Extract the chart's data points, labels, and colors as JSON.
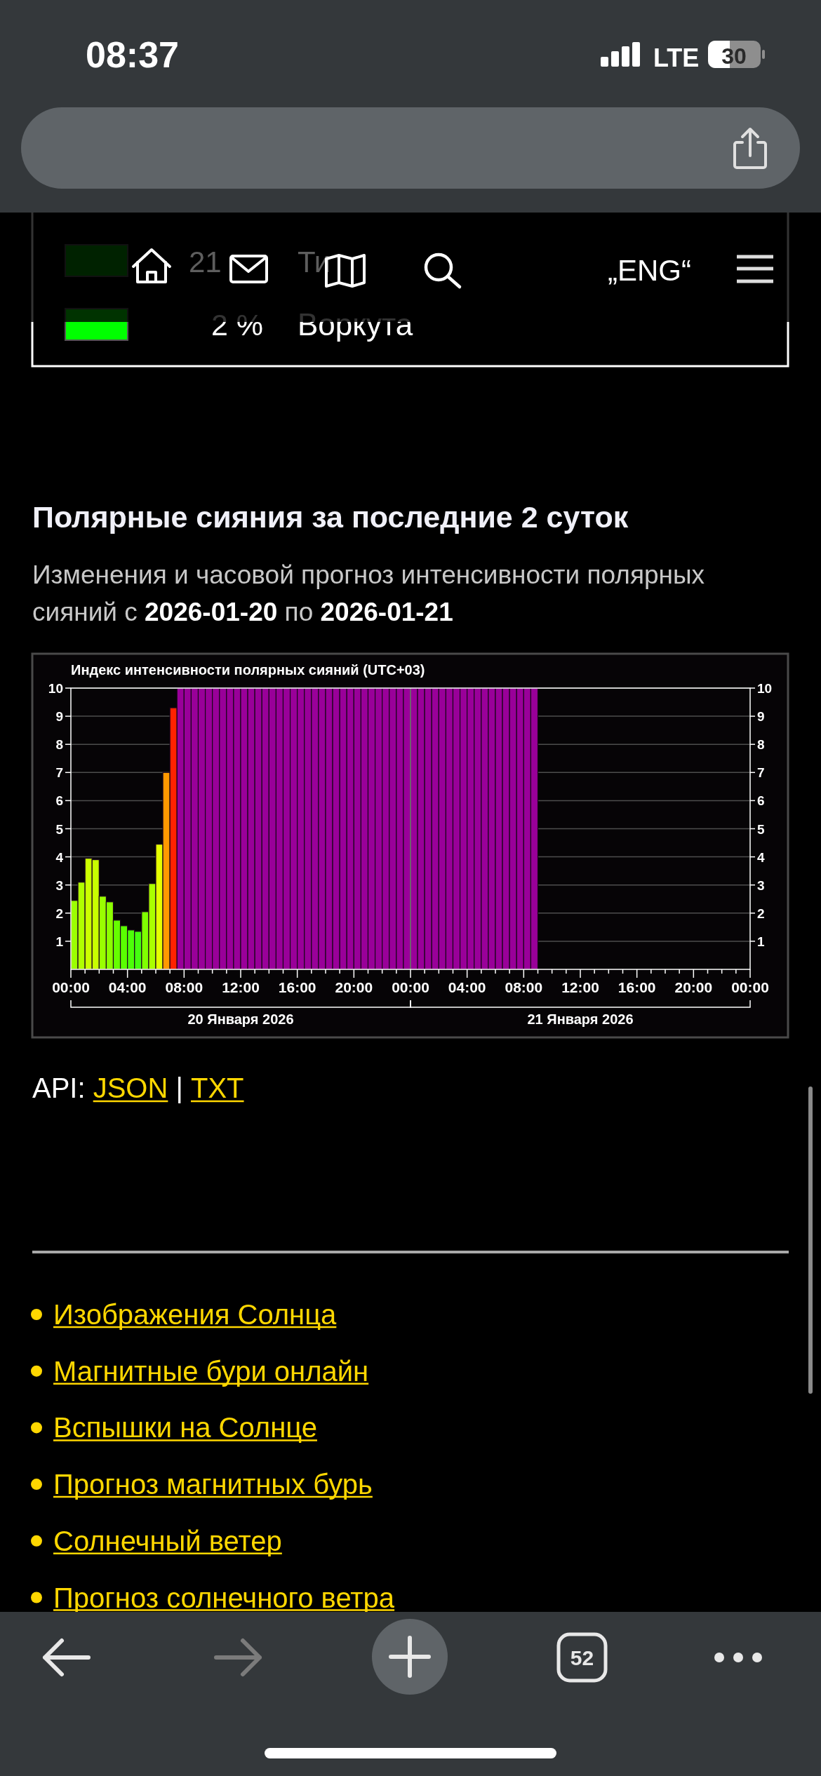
{
  "chart_data": {
    "type": "bar",
    "title": "Индекс интенсивности полярных сияний (UTC+03)",
    "x": [
      "2026-01-20T00:15",
      "2026-01-20T00:45",
      "2026-01-20T01:15",
      "2026-01-20T01:45",
      "2026-01-20T02:15",
      "2026-01-20T02:45",
      "2026-01-20T03:15",
      "2026-01-20T03:45",
      "2026-01-20T04:15",
      "2026-01-20T04:45",
      "2026-01-20T05:15",
      "2026-01-20T05:45",
      "2026-01-20T06:15",
      "2026-01-20T06:45",
      "2026-01-20T07:15",
      "2026-01-20T07:45",
      "2026-01-20T08:15",
      "2026-01-20T08:45",
      "2026-01-20T09:15",
      "2026-01-20T09:45",
      "2026-01-20T10:15",
      "2026-01-20T10:45",
      "2026-01-20T11:15",
      "2026-01-20T11:45",
      "2026-01-20T12:15",
      "2026-01-20T12:45",
      "2026-01-20T13:15",
      "2026-01-20T13:45",
      "2026-01-20T14:15",
      "2026-01-20T14:45",
      "2026-01-20T15:15",
      "2026-01-20T15:45",
      "2026-01-20T16:15",
      "2026-01-20T16:45",
      "2026-01-20T17:15",
      "2026-01-20T17:45",
      "2026-01-20T18:15",
      "2026-01-20T18:45",
      "2026-01-20T19:15",
      "2026-01-20T19:45",
      "2026-01-20T20:15",
      "2026-01-20T20:45",
      "2026-01-20T21:15",
      "2026-01-20T21:45",
      "2026-01-20T22:15",
      "2026-01-20T22:45",
      "2026-01-20T23:15",
      "2026-01-20T23:45",
      "2026-01-21T00:15",
      "2026-01-21T00:45",
      "2026-01-21T01:15",
      "2026-01-21T01:45",
      "2026-01-21T02:15",
      "2026-01-21T02:45",
      "2026-01-21T03:15",
      "2026-01-21T03:45",
      "2026-01-21T04:15",
      "2026-01-21T04:45",
      "2026-01-21T05:15",
      "2026-01-21T05:45",
      "2026-01-21T06:15",
      "2026-01-21T06:45",
      "2026-01-21T07:15",
      "2026-01-21T07:45",
      "2026-01-21T08:15",
      "2026-01-21T08:45"
    ],
    "values": [
      2.45,
      3.1,
      3.95,
      3.9,
      2.6,
      2.4,
      1.75,
      1.55,
      1.4,
      1.35,
      2.05,
      3.05,
      4.45,
      7.0,
      9.3,
      10,
      10,
      10,
      10,
      10,
      10,
      10,
      10,
      10,
      10,
      10,
      10,
      10,
      10,
      10,
      10,
      10,
      10,
      10,
      10,
      10,
      10,
      10,
      10,
      10,
      10,
      10,
      10,
      10,
      10,
      10,
      10,
      10,
      10,
      10,
      10,
      10,
      10,
      10,
      10,
      10,
      10,
      10,
      10,
      10,
      10,
      10,
      10,
      10,
      10,
      10
    ],
    "colors": [
      "#9cff00",
      "#b0ff00",
      "#ccff00",
      "#c8ff00",
      "#99ff00",
      "#8cff00",
      "#66ff00",
      "#5aff00",
      "#4cff08",
      "#44ff10",
      "#80ff00",
      "#aaff00",
      "#e5ff00",
      "#ff9900",
      "#ff2200",
      "#990099",
      "#990099",
      "#990099",
      "#990099",
      "#990099",
      "#990099",
      "#990099",
      "#990099",
      "#990099",
      "#990099",
      "#990099",
      "#990099",
      "#990099",
      "#990099",
      "#990099",
      "#990099",
      "#990099",
      "#990099",
      "#990099",
      "#990099",
      "#990099",
      "#990099",
      "#990099",
      "#990099",
      "#990099",
      "#990099",
      "#990099",
      "#990099",
      "#990099",
      "#990099",
      "#990099",
      "#990099",
      "#990099",
      "#990099",
      "#990099",
      "#990099",
      "#990099",
      "#990099",
      "#990099",
      "#990099",
      "#990099",
      "#990099",
      "#990099",
      "#990099",
      "#990099",
      "#990099",
      "#990099",
      "#990099",
      "#990099",
      "#990099",
      "#990099"
    ],
    "xlim": [
      "2026-01-20T00:00",
      "2026-01-22T00:00"
    ],
    "xticks": [
      {
        "value": "2026-01-20T00:00",
        "label": "00:00"
      },
      {
        "value": "2026-01-20T01:00",
        "label": null
      },
      {
        "value": "2026-01-20T02:00",
        "label": null
      },
      {
        "value": "2026-01-20T03:00",
        "label": null
      },
      {
        "value": "2026-01-20T04:00",
        "label": "04:00"
      },
      {
        "value": "2026-01-20T05:00",
        "label": null
      },
      {
        "value": "2026-01-20T06:00",
        "label": null
      },
      {
        "value": "2026-01-20T07:00",
        "label": null
      },
      {
        "value": "2026-01-20T08:00",
        "label": "08:00"
      },
      {
        "value": "2026-01-20T09:00",
        "label": null
      },
      {
        "value": "2026-01-20T10:00",
        "label": null
      },
      {
        "value": "2026-01-20T11:00",
        "label": null
      },
      {
        "value": "2026-01-20T12:00",
        "label": "12:00"
      },
      {
        "value": "2026-01-20T13:00",
        "label": null
      },
      {
        "value": "2026-01-20T14:00",
        "label": null
      },
      {
        "value": "2026-01-20T15:00",
        "label": null
      },
      {
        "value": "2026-01-20T16:00",
        "label": "16:00"
      },
      {
        "value": "2026-01-20T17:00",
        "label": null
      },
      {
        "value": "2026-01-20T18:00",
        "label": null
      },
      {
        "value": "2026-01-20T19:00",
        "label": null
      },
      {
        "value": "2026-01-20T20:00",
        "label": "20:00"
      },
      {
        "value": "2026-01-20T21:00",
        "label": null
      },
      {
        "value": "2026-01-20T22:00",
        "label": null
      },
      {
        "value": "2026-01-20T23:00",
        "label": null
      },
      {
        "value": "2026-01-21T00:00",
        "label": "00:00"
      },
      {
        "value": "2026-01-21T01:00",
        "label": null
      },
      {
        "value": "2026-01-21T02:00",
        "label": null
      },
      {
        "value": "2026-01-21T03:00",
        "label": null
      },
      {
        "value": "2026-01-21T04:00",
        "label": "04:00"
      },
      {
        "value": "2026-01-21T05:00",
        "label": null
      },
      {
        "value": "2026-01-21T06:00",
        "label": null
      },
      {
        "value": "2026-01-21T07:00",
        "label": null
      },
      {
        "value": "2026-01-21T08:00",
        "label": "08:00"
      },
      {
        "value": "2026-01-21T09:00",
        "label": null
      },
      {
        "value": "2026-01-21T10:00",
        "label": null
      },
      {
        "value": "2026-01-21T11:00",
        "label": null
      },
      {
        "value": "2026-01-21T12:00",
        "label": "12:00"
      },
      {
        "value": "2026-01-21T13:00",
        "label": null
      },
      {
        "value": "2026-01-21T14:00",
        "label": null
      },
      {
        "value": "2026-01-21T15:00",
        "label": null
      },
      {
        "value": "2026-01-21T16:00",
        "label": "16:00"
      },
      {
        "value": "2026-01-21T17:00",
        "label": null
      },
      {
        "value": "2026-01-21T18:00",
        "label": null
      },
      {
        "value": "2026-01-21T19:00",
        "label": null
      },
      {
        "value": "2026-01-21T20:00",
        "label": "20:00"
      },
      {
        "value": "2026-01-21T21:00",
        "label": null
      },
      {
        "value": "2026-01-21T22:00",
        "label": null
      },
      {
        "value": "2026-01-21T23:00",
        "label": null
      },
      {
        "value": "2026-01-22T00:00",
        "label": "00:00"
      }
    ],
    "ylim": [
      0,
      10
    ],
    "yticks": [
      1,
      2,
      3,
      4,
      5,
      6,
      7,
      8,
      9,
      10
    ],
    "y2lim": [
      0,
      10
    ],
    "y2ticks": [
      1,
      2,
      3,
      4,
      5,
      6,
      7,
      8,
      9,
      10
    ],
    "grid": "y",
    "ref_lines": [
      {
        "axis": "x",
        "value": "2026-01-21T00:00",
        "color": "#808080"
      }
    ],
    "annotations": [
      "08:37",
      "LTE",
      "30",
      "„ENG“",
      "21",
      "Ти",
      "2 %",
      "Воркута",
      "Полярные сияния за последние 2 суток",
      "Изменения и часовой прогноз интенсивности полярных сияний с 2026-01-20 по 2026-01-21",
      "20 Января 2026",
      "21 Января 2026",
      "API:",
      "JSON",
      "|",
      "TXT",
      "Изображения Солнца",
      "Магнитные бури онлайн",
      "Вспышки на Солнце",
      "Прогноз магнитных бурь",
      "Солнечный ветер",
      "Прогноз солнечного ветра",
      "52"
    ]
  }
}
